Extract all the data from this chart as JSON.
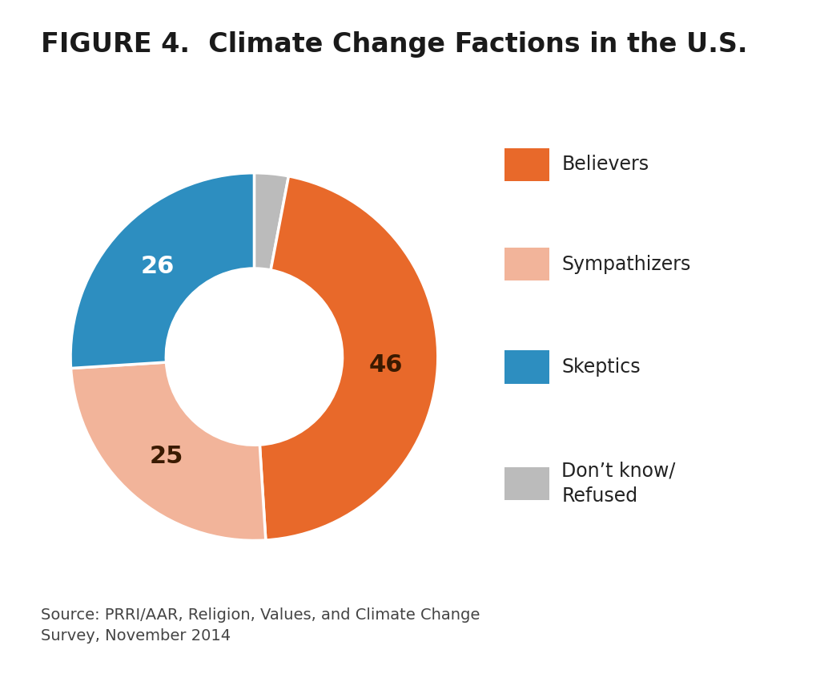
{
  "title": "FIGURE 4.  Climate Change Factions in the U.S.",
  "slices": [
    46,
    25,
    26,
    3
  ],
  "labels": [
    "Believers",
    "Sympathizers",
    "Skeptics",
    "Don’t know/\nRefused"
  ],
  "colors": [
    "#E8692A",
    "#F2B49A",
    "#2D8EC0",
    "#BBBBBB"
  ],
  "slice_text": [
    "46",
    "25",
    "26"
  ],
  "slice_text_colors": [
    "#3a1a00",
    "#3a1a00",
    "#ffffff"
  ],
  "source_text": "Source: PRRI/AAR, Religion, Values, and Climate Change\nSurvey, November 2014",
  "background_color": "#ffffff",
  "title_fontsize": 24,
  "legend_fontsize": 17,
  "label_fontsize": 22,
  "source_fontsize": 14
}
